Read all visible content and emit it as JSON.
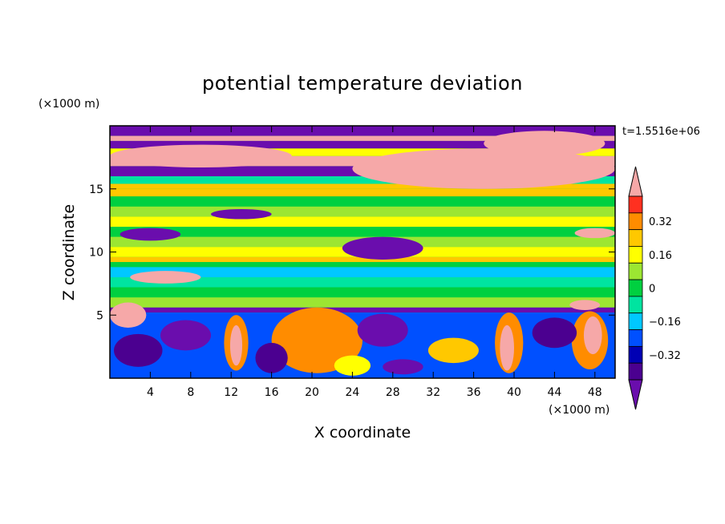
{
  "chart_data": {
    "type": "heatmap",
    "title": "potential temperature deviation",
    "xlabel": "X coordinate",
    "ylabel": "Z coordinate",
    "x_unit": "(×1000 m)",
    "y_unit": "(×1000 m)",
    "time_label": "t=1.5516e+06",
    "xlim": [
      0,
      50
    ],
    "ylim": [
      0,
      20
    ],
    "x_ticks": [
      4,
      8,
      12,
      16,
      20,
      24,
      28,
      32,
      36,
      40,
      44,
      48
    ],
    "y_ticks": [
      5,
      10,
      15
    ],
    "colorbar": {
      "levels": [
        -0.48,
        -0.4,
        -0.32,
        -0.24,
        -0.16,
        -0.08,
        0,
        0.08,
        0.16,
        0.24,
        0.32,
        0.4,
        0.48
      ],
      "tick_values": [
        0.32,
        0.16,
        0,
        -0.16,
        -0.32
      ],
      "tick_labels": [
        "0.32",
        "0.16",
        "0",
        "−0.16",
        "−0.32"
      ],
      "colors": [
        "#6a0dad",
        "#4b0090",
        "#0000b4",
        "#0050ff",
        "#00c8ff",
        "#00e4a0",
        "#00d040",
        "#9ce632",
        "#ffff00",
        "#ffc800",
        "#ff8c00",
        "#ff3020",
        "#f6a8a8"
      ],
      "extend": "both"
    },
    "bands": [
      {
        "z0": 19.2,
        "z1": 20.0,
        "value": -0.48
      },
      {
        "z0": 18.8,
        "z1": 19.2,
        "value": 0.48
      },
      {
        "z0": 18.2,
        "z1": 18.8,
        "value": -0.48
      },
      {
        "z0": 17.6,
        "z1": 18.2,
        "value": 0.16
      },
      {
        "z0": 16.8,
        "z1": 17.6,
        "value": 0.48
      },
      {
        "z0": 16.0,
        "z1": 16.8,
        "value": -0.48
      },
      {
        "z0": 15.4,
        "z1": 16.0,
        "value": -0.08
      },
      {
        "z0": 15.0,
        "z1": 15.4,
        "value": 0.2
      },
      {
        "z0": 14.4,
        "z1": 15.0,
        "value": 0.26
      },
      {
        "z0": 13.6,
        "z1": 14.4,
        "value": 0.04
      },
      {
        "z0": 12.8,
        "z1": 13.6,
        "value": 0.1
      },
      {
        "z0": 12.0,
        "z1": 12.8,
        "value": 0.16
      },
      {
        "z0": 11.2,
        "z1": 12.0,
        "value": 0.04
      },
      {
        "z0": 10.4,
        "z1": 11.2,
        "value": 0.1
      },
      {
        "z0": 9.6,
        "z1": 10.4,
        "value": 0.16
      },
      {
        "z0": 9.2,
        "z1": 9.6,
        "value": 0.24
      },
      {
        "z0": 8.8,
        "z1": 9.2,
        "value": 0.04
      },
      {
        "z0": 8.0,
        "z1": 8.8,
        "value": -0.16
      },
      {
        "z0": 7.2,
        "z1": 8.0,
        "value": -0.08
      },
      {
        "z0": 6.4,
        "z1": 7.2,
        "value": 0.04
      },
      {
        "z0": 5.6,
        "z1": 6.4,
        "value": 0.1
      },
      {
        "z0": 5.2,
        "z1": 5.6,
        "value": -0.48
      },
      {
        "z0": 0.0,
        "z1": 5.2,
        "value": -0.24
      }
    ],
    "blobs": [
      {
        "x": 9,
        "z": 17.6,
        "rx": 9,
        "rz": 0.9,
        "value": 0.48
      },
      {
        "x": 37,
        "z": 16.6,
        "rx": 13,
        "rz": 1.6,
        "value": 0.48
      },
      {
        "x": 43,
        "z": 18.6,
        "rx": 6,
        "rz": 1.0,
        "value": 0.48
      },
      {
        "x": 4,
        "z": 11.4,
        "rx": 3,
        "rz": 0.5,
        "value": -0.48
      },
      {
        "x": 27,
        "z": 10.3,
        "rx": 4,
        "rz": 0.9,
        "value": -0.48
      },
      {
        "x": 13,
        "z": 13.0,
        "rx": 3,
        "rz": 0.4,
        "value": -0.48
      },
      {
        "x": 48,
        "z": 11.5,
        "rx": 2,
        "rz": 0.4,
        "value": 0.48
      },
      {
        "x": 5.5,
        "z": 8.0,
        "rx": 3.5,
        "rz": 0.5,
        "value": 0.48
      },
      {
        "x": 1.8,
        "z": 5.0,
        "rx": 1.8,
        "rz": 1.0,
        "value": 0.48
      },
      {
        "x": 47,
        "z": 5.8,
        "rx": 1.5,
        "rz": 0.4,
        "value": 0.48
      },
      {
        "x": 20.5,
        "z": 3.6,
        "rx": 3.2,
        "rz": 1.8,
        "value": 0.48
      },
      {
        "x": 20.5,
        "z": 3.0,
        "rx": 4.5,
        "rz": 2.6,
        "value": 0.32
      },
      {
        "x": 12.5,
        "z": 2.8,
        "rx": 1.2,
        "rz": 2.2,
        "value": 0.32
      },
      {
        "x": 12.5,
        "z": 2.6,
        "rx": 0.6,
        "rz": 1.6,
        "value": 0.48
      },
      {
        "x": 34,
        "z": 2.2,
        "rx": 2.5,
        "rz": 1.0,
        "value": 0.24
      },
      {
        "x": 39.5,
        "z": 2.8,
        "rx": 1.4,
        "rz": 2.4,
        "value": 0.32
      },
      {
        "x": 39.3,
        "z": 2.4,
        "rx": 0.7,
        "rz": 1.8,
        "value": 0.48
      },
      {
        "x": 47.5,
        "z": 3.0,
        "rx": 1.8,
        "rz": 2.3,
        "value": 0.32
      },
      {
        "x": 47.8,
        "z": 3.4,
        "rx": 0.9,
        "rz": 1.5,
        "value": 0.48
      },
      {
        "x": 7.5,
        "z": 3.4,
        "rx": 2.5,
        "rz": 1.2,
        "value": -0.48
      },
      {
        "x": 2.8,
        "z": 2.2,
        "rx": 2.4,
        "rz": 1.3,
        "value": -0.4
      },
      {
        "x": 27,
        "z": 3.8,
        "rx": 2.5,
        "rz": 1.3,
        "value": -0.48
      },
      {
        "x": 29,
        "z": 0.9,
        "rx": 2.0,
        "rz": 0.6,
        "value": -0.48
      },
      {
        "x": 16,
        "z": 1.6,
        "rx": 1.6,
        "rz": 1.2,
        "value": -0.4
      },
      {
        "x": 44,
        "z": 3.6,
        "rx": 2.2,
        "rz": 1.2,
        "value": -0.4
      },
      {
        "x": 24,
        "z": 1.0,
        "rx": 1.8,
        "rz": 0.8,
        "value": 0.16
      }
    ]
  }
}
